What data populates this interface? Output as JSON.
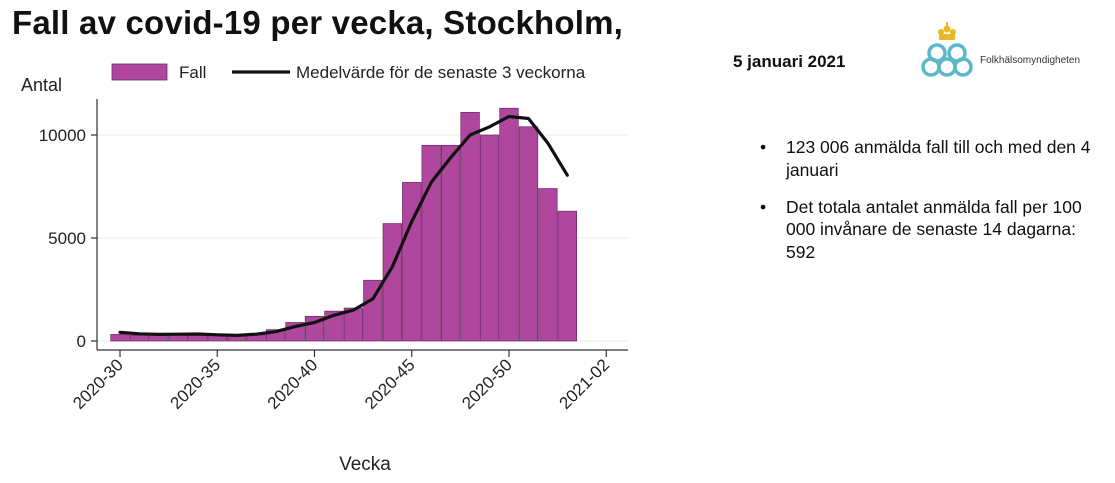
{
  "slide": {
    "title": "Fall av covid-19 per vecka, Stockholm,",
    "date": "5 januari 2021",
    "logo_text": "Folkhälsomyndigheten",
    "bullets": [
      "123 006 anmälda fall till och med den 4 januari",
      "Det totala antalet anmälda fall per 100 000 invånare de senaste 14 dagarna: 592"
    ]
  },
  "chart_data": {
    "type": "bar",
    "title": "",
    "xlabel": "Vecka",
    "ylabel": "Antal",
    "ylim": [
      0,
      11500
    ],
    "yticks": [
      0,
      5000,
      10000
    ],
    "xticks": [
      "2020-30",
      "2020-35",
      "2020-40",
      "2020-45",
      "2020-50",
      "2021-02"
    ],
    "grid": "horizontal",
    "legend_position": "top",
    "categories": [
      "2020-30",
      "2020-31",
      "2020-32",
      "2020-33",
      "2020-34",
      "2020-35",
      "2020-36",
      "2020-37",
      "2020-38",
      "2020-39",
      "2020-40",
      "2020-41",
      "2020-42",
      "2020-43",
      "2020-44",
      "2020-45",
      "2020-46",
      "2020-47",
      "2020-48",
      "2020-49",
      "2020-50",
      "2020-51",
      "2020-52",
      "2020-53",
      "2021-01"
    ],
    "series": [
      {
        "name": "Fall",
        "type": "bar",
        "color": "#b0479e",
        "values": [
          320,
          280,
          300,
          320,
          310,
          280,
          250,
          300,
          550,
          900,
          1200,
          1450,
          1600,
          2950,
          5700,
          7700,
          9500,
          9500,
          11100,
          10000,
          11300,
          10400,
          7400,
          6300,
          0
        ]
      },
      {
        "name": "Medelvärde för de senaste 3 veckorna",
        "type": "line",
        "color": "#111111",
        "values": [
          420,
          350,
          320,
          330,
          340,
          300,
          270,
          330,
          450,
          700,
          900,
          1250,
          1500,
          2050,
          3600,
          5800,
          7700,
          8900,
          10000,
          10400,
          10900,
          10800,
          9600,
          8050,
          null
        ]
      }
    ]
  }
}
